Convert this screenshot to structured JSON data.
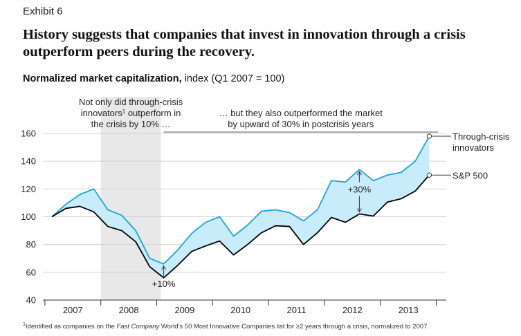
{
  "exhibit": "Exhibit 6",
  "title": "History suggests that companies that invest in innovation through a crisis outperform peers during the recovery.",
  "subtitle": {
    "bold": "Normalized market capitalization,",
    "rest": " index (Q1 2007 = 100)"
  },
  "annotations": {
    "crisis_line1": "Not only did through-crisis",
    "crisis_line2a": "innovators",
    "crisis_line2_sup": "1",
    "crisis_line2b": " outperform in",
    "crisis_line3": "the crisis by 10% …",
    "post_line1": "… but they also outperformed the market",
    "post_line2": "by upward of 30% in postcrisis years",
    "crisis_gap": "+10%",
    "post_gap": "+30%"
  },
  "footnote": {
    "sup": "1",
    "part1": "Identified as companies on the ",
    "italic": "Fast Company",
    "part2": " World’s 50 Most Innovative Companies list for ≥2 years through a crisis, normalized to 2007."
  },
  "colors": {
    "innovators": "#1aa3e0",
    "sp500": "#000000",
    "fill": "#c9ecfa",
    "shade": "#e8e8e8",
    "grid": "#d0d0d0"
  },
  "chart_data": {
    "type": "line",
    "x_labels": [
      "2007",
      "2008",
      "2009",
      "2010",
      "2011",
      "2012",
      "2013"
    ],
    "x_quarters": [
      "Q1 2007",
      "Q2 2007",
      "Q3 2007",
      "Q4 2007",
      "Q1 2008",
      "Q2 2008",
      "Q3 2008",
      "Q4 2008",
      "Q1 2009",
      "Q2 2009",
      "Q3 2009",
      "Q4 2009",
      "Q1 2010",
      "Q2 2010",
      "Q3 2010",
      "Q4 2010",
      "Q1 2011",
      "Q2 2011",
      "Q3 2011",
      "Q4 2011",
      "Q1 2012",
      "Q2 2012",
      "Q3 2012",
      "Q4 2012",
      "Q1 2013",
      "Q2 2013",
      "Q3 2013",
      "Q4 2013"
    ],
    "ylim": [
      40,
      160
    ],
    "yticks": [
      40,
      60,
      80,
      100,
      120,
      140,
      160
    ],
    "shaded_period": [
      "Q1 2008",
      "Q4 2008"
    ],
    "series": [
      {
        "name": "Through-crisis innovators",
        "label_line1": "Through-crisis",
        "label_line2": "innovators",
        "values": [
          100,
          109,
          116,
          120,
          105,
          101,
          90,
          70,
          66,
          76,
          88,
          96,
          100,
          86,
          94,
          104,
          105,
          103,
          97,
          105,
          126,
          125,
          134,
          126,
          130,
          132,
          140,
          158
        ]
      },
      {
        "name": "S&P 500",
        "label_line1": "S&P 500",
        "values": [
          100,
          106,
          107.5,
          103.5,
          93,
          90,
          82,
          64,
          56,
          65,
          75,
          79,
          82.5,
          72.5,
          80,
          88.5,
          93.5,
          93,
          80,
          88.5,
          99.5,
          96,
          102,
          100.5,
          110.5,
          113,
          118.5,
          130
        ]
      }
    ]
  }
}
